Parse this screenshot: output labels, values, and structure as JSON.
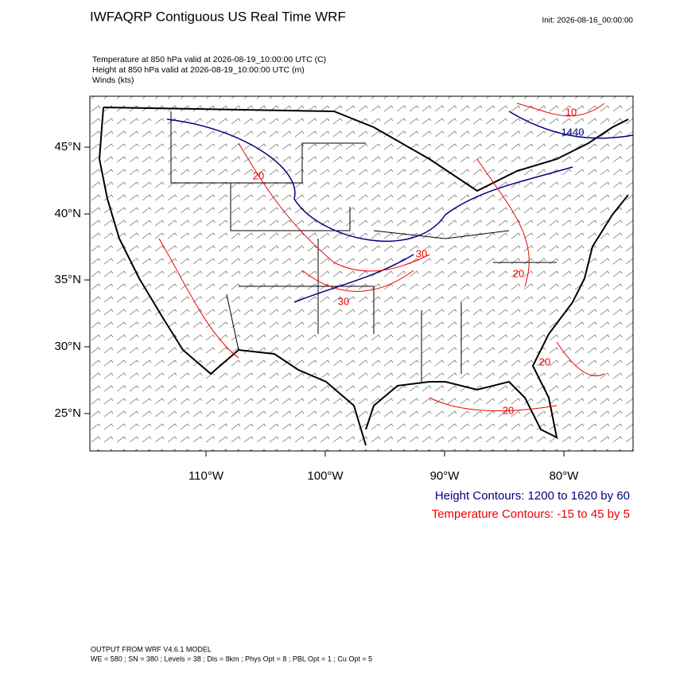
{
  "header": {
    "title": "IWFAQRP Contiguous US Real Time WRF",
    "init": "Init: 2026-08-16_00:00:00"
  },
  "subtitles": [
    "Temperature at 850 hPa valid at 2026-08-19_10:00:00 UTC   (C)",
    "Height at 850 hPa valid at 2026-08-19_10:00:00 UTC   (m)",
    "Winds   (kts)"
  ],
  "map": {
    "lat_labels": [
      "45°N",
      "40°N",
      "35°N",
      "30°N",
      "25°N"
    ],
    "lon_labels": [
      "110°W",
      "100°W",
      "90°W",
      "80°W"
    ],
    "contour_labels": [
      "10",
      "1440",
      "20",
      "30",
      "20",
      "30",
      "20",
      "20"
    ]
  },
  "legend": {
    "height": "Height Contours: 1200 to 1620 by 60",
    "temperature": "Temperature Contours: -15 to 45 by 5"
  },
  "footer": [
    "OUTPUT FROM WRF V4.6.1 MODEL",
    "WE = 580 ; SN = 380 ; Levels = 38 ; Dis = 8km ; Phys Opt = 8 ; PBL Opt = 1 ; Cu Opt = 5"
  ]
}
